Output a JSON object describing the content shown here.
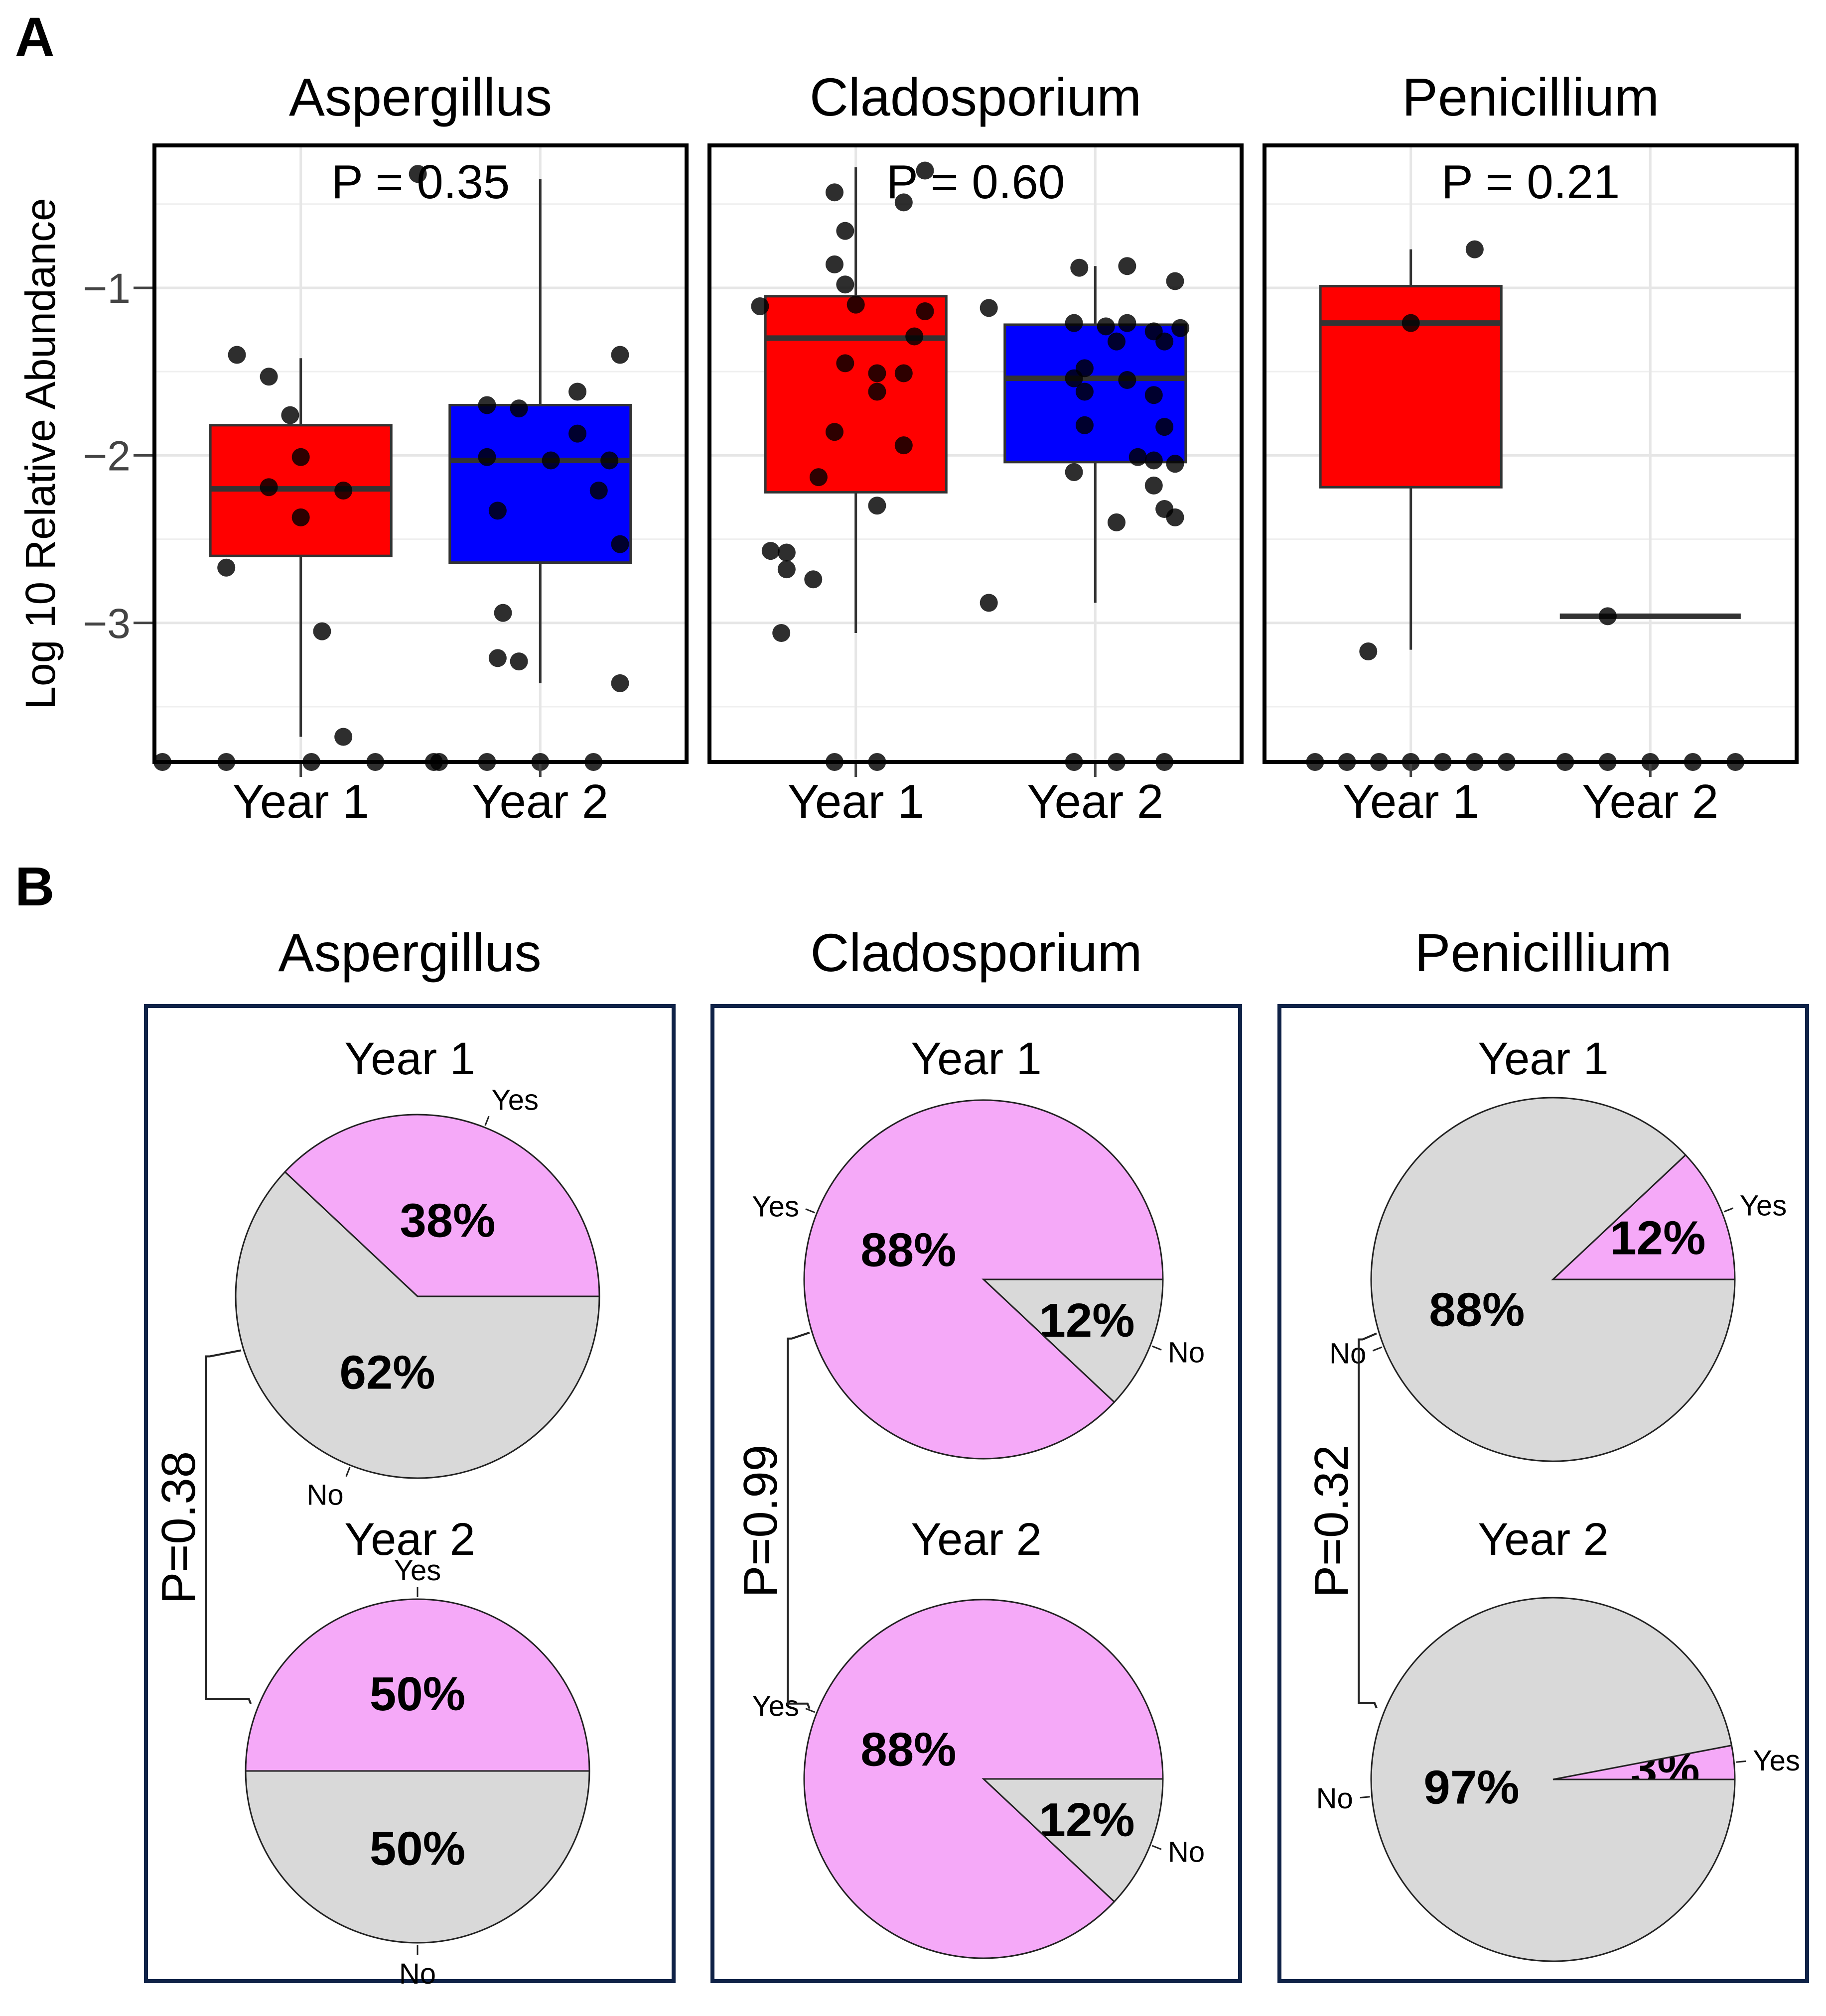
{
  "panel_labels": {
    "a": "A",
    "b": "B"
  },
  "colors": {
    "year1_box": "#ff0000",
    "year2_box": "#0000ff",
    "pie_yes": "#f5a9f8",
    "pie_no": "#d9d9d9",
    "point": "#000000",
    "frame_a": "#000000",
    "frame_b": "#0f2247"
  },
  "chart_data": [
    {
      "type": "box",
      "panel": "A",
      "ylabel": "Log 10 Relative Abundance",
      "yticks": [
        -1,
        -2,
        -3
      ],
      "ytick_labels": [
        "−1",
        "−2",
        "−3"
      ],
      "ylim": [
        -3.83,
        -0.15
      ],
      "categories": [
        "Year 1",
        "Year 2"
      ],
      "facets": [
        {
          "title": "Aspergillus",
          "p_label": "P = 0.35",
          "series": [
            {
              "name": "Year 1",
              "color": "#ff0000",
              "q1": -2.6,
              "median": -2.2,
              "q3": -1.82,
              "whisker_low": -3.68,
              "whisker_high": -1.42,
              "points": [
                [
                  -0.12,
                  -1.4
                ],
                [
                  -0.06,
                  -1.53
                ],
                [
                  -0.02,
                  -1.76
                ],
                [
                  0.0,
                  -2.01
                ],
                [
                  -0.06,
                  -2.19
                ],
                [
                  0.08,
                  -2.21
                ],
                [
                  0.0,
                  -2.37
                ],
                [
                  -0.14,
                  -2.67
                ],
                [
                  0.04,
                  -3.05
                ],
                [
                  0.08,
                  -3.68
                ],
                [
                  -0.26,
                  -3.83
                ],
                [
                  -0.14,
                  -3.83
                ],
                [
                  0.02,
                  -3.83
                ],
                [
                  0.14,
                  -3.83
                ],
                [
                  0.26,
                  -3.83
                ]
              ]
            },
            {
              "name": "Year 2",
              "color": "#0000ff",
              "q1": -2.64,
              "median": -2.03,
              "q3": -1.7,
              "whisker_low": -3.36,
              "whisker_high": -0.35,
              "points": [
                [
                  -0.23,
                  -0.32
                ],
                [
                  0.15,
                  -1.4
                ],
                [
                  0.07,
                  -1.62
                ],
                [
                  -0.1,
                  -1.7
                ],
                [
                  -0.04,
                  -1.72
                ],
                [
                  0.07,
                  -1.87
                ],
                [
                  -0.1,
                  -2.01
                ],
                [
                  0.02,
                  -2.03
                ],
                [
                  0.13,
                  -2.03
                ],
                [
                  0.11,
                  -2.21
                ],
                [
                  -0.08,
                  -2.33
                ],
                [
                  0.15,
                  -2.53
                ],
                [
                  -0.07,
                  -2.94
                ],
                [
                  -0.08,
                  -3.21
                ],
                [
                  -0.04,
                  -3.23
                ],
                [
                  0.15,
                  -3.36
                ],
                [
                  -0.2,
                  -3.83
                ],
                [
                  -0.1,
                  -3.83
                ],
                [
                  0.0,
                  -3.83
                ],
                [
                  0.1,
                  -3.83
                ]
              ]
            }
          ]
        },
        {
          "title": "Cladosporium",
          "p_label": "P = 0.60",
          "series": [
            {
              "name": "Year 1",
              "color": "#ff0000",
              "q1": -2.22,
              "median": -1.3,
              "q3": -1.05,
              "whisker_low": -3.06,
              "whisker_high": -0.28,
              "points": [
                [
                  0.13,
                  -0.3
                ],
                [
                  -0.04,
                  -0.43
                ],
                [
                  0.09,
                  -0.49
                ],
                [
                  -0.02,
                  -0.66
                ],
                [
                  -0.04,
                  -0.86
                ],
                [
                  -0.02,
                  -0.98
                ],
                [
                  -0.18,
                  -1.11
                ],
                [
                  0.0,
                  -1.1
                ],
                [
                  0.13,
                  -1.14
                ],
                [
                  0.11,
                  -1.29
                ],
                [
                  -0.02,
                  -1.45
                ],
                [
                  0.04,
                  -1.51
                ],
                [
                  0.04,
                  -1.62
                ],
                [
                  0.09,
                  -1.51
                ],
                [
                  -0.04,
                  -1.86
                ],
                [
                  0.09,
                  -1.94
                ],
                [
                  -0.07,
                  -2.13
                ],
                [
                  0.04,
                  -2.3
                ],
                [
                  -0.16,
                  -2.57
                ],
                [
                  -0.13,
                  -2.58
                ],
                [
                  -0.13,
                  -2.68
                ],
                [
                  -0.08,
                  -2.74
                ],
                [
                  -0.14,
                  -3.06
                ],
                [
                  -0.04,
                  -3.83
                ],
                [
                  0.04,
                  -3.83
                ]
              ]
            },
            {
              "name": "Year 2",
              "color": "#0000ff",
              "q1": -2.04,
              "median": -1.54,
              "q3": -1.22,
              "whisker_low": -2.88,
              "whisker_high": -0.87,
              "points": [
                [
                  -0.03,
                  -0.88
                ],
                [
                  0.06,
                  -0.87
                ],
                [
                  0.15,
                  -0.96
                ],
                [
                  -0.2,
                  -1.12
                ],
                [
                  -0.04,
                  -1.21
                ],
                [
                  0.06,
                  -1.21
                ],
                [
                  0.02,
                  -1.23
                ],
                [
                  0.11,
                  -1.26
                ],
                [
                  0.16,
                  -1.24
                ],
                [
                  0.13,
                  -1.32
                ],
                [
                  0.04,
                  -1.32
                ],
                [
                  -0.02,
                  -1.48
                ],
                [
                  -0.04,
                  -1.54
                ],
                [
                  0.06,
                  -1.55
                ],
                [
                  -0.02,
                  -1.62
                ],
                [
                  0.11,
                  -1.64
                ],
                [
                  -0.02,
                  -1.82
                ],
                [
                  0.13,
                  -1.83
                ],
                [
                  0.08,
                  -2.01
                ],
                [
                  0.11,
                  -2.03
                ],
                [
                  0.15,
                  -2.05
                ],
                [
                  -0.04,
                  -2.1
                ],
                [
                  0.11,
                  -2.18
                ],
                [
                  0.13,
                  -2.32
                ],
                [
                  0.04,
                  -2.4
                ],
                [
                  0.15,
                  -2.37
                ],
                [
                  -0.2,
                  -2.88
                ],
                [
                  -0.04,
                  -3.83
                ],
                [
                  0.04,
                  -3.83
                ],
                [
                  0.13,
                  -3.83
                ]
              ]
            }
          ]
        },
        {
          "title": "Penicillium",
          "p_label": "P = 0.21",
          "series": [
            {
              "name": "Year 1",
              "color": "#ff0000",
              "q1": -2.19,
              "median": -1.21,
              "q3": -0.99,
              "whisker_low": -3.16,
              "whisker_high": -0.77,
              "points": [
                [
                  0.12,
                  -0.77
                ],
                [
                  0.0,
                  -1.21
                ],
                [
                  -0.08,
                  -3.17
                ],
                [
                  -0.18,
                  -3.83
                ],
                [
                  -0.12,
                  -3.83
                ],
                [
                  -0.06,
                  -3.83
                ],
                [
                  0.0,
                  -3.83
                ],
                [
                  0.06,
                  -3.83
                ],
                [
                  0.12,
                  -3.83
                ],
                [
                  0.18,
                  -3.83
                ]
              ]
            },
            {
              "name": "Year 2",
              "color": "#0000ff",
              "q1": -2.96,
              "median": -2.96,
              "q3": -2.96,
              "whisker_low": -2.96,
              "whisker_high": -2.96,
              "points": [
                [
                  -0.08,
                  -2.96
                ],
                [
                  -0.16,
                  -3.83
                ],
                [
                  -0.08,
                  -3.83
                ],
                [
                  0.0,
                  -3.83
                ],
                [
                  0.08,
                  -3.83
                ],
                [
                  0.16,
                  -3.83
                ]
              ]
            }
          ]
        }
      ]
    },
    {
      "type": "pie",
      "panel": "B",
      "facets": [
        {
          "title": "Aspergillus",
          "p_label": "P=0.38",
          "pies": [
            {
              "title": "Year 1",
              "slices": [
                {
                  "label": "Yes",
                  "value": 38,
                  "text": "38%"
                },
                {
                  "label": "No",
                  "value": 62,
                  "text": "62%"
                }
              ]
            },
            {
              "title": "Year 2",
              "slices": [
                {
                  "label": "Yes",
                  "value": 50,
                  "text": "50%"
                },
                {
                  "label": "No",
                  "value": 50,
                  "text": "50%"
                }
              ]
            }
          ]
        },
        {
          "title": "Cladosporium",
          "p_label": "P=0.99",
          "pies": [
            {
              "title": "Year 1",
              "slices": [
                {
                  "label": "No",
                  "value": 12,
                  "text": "12%"
                },
                {
                  "label": "Yes",
                  "value": 88,
                  "text": "88%"
                }
              ]
            },
            {
              "title": "Year 2",
              "slices": [
                {
                  "label": "No",
                  "value": 12,
                  "text": "12%"
                },
                {
                  "label": "Yes",
                  "value": 88,
                  "text": "88%"
                }
              ]
            }
          ]
        },
        {
          "title": "Penicillium",
          "p_label": "P=0.32",
          "pies": [
            {
              "title": "Year 1",
              "slices": [
                {
                  "label": "Yes",
                  "value": 12,
                  "text": "12%"
                },
                {
                  "label": "No",
                  "value": 88,
                  "text": "88%"
                }
              ]
            },
            {
              "title": "Year 2",
              "slices": [
                {
                  "label": "Yes",
                  "value": 3,
                  "text": "3%"
                },
                {
                  "label": "No",
                  "value": 97,
                  "text": "97%"
                }
              ]
            }
          ]
        }
      ]
    }
  ]
}
